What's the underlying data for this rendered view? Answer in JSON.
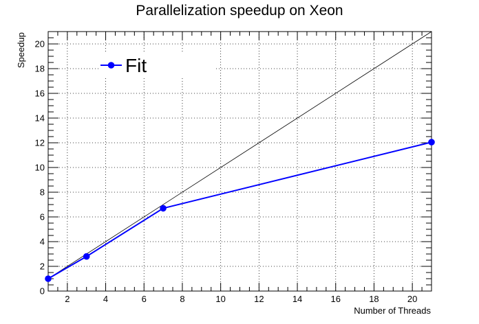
{
  "chart_data": {
    "type": "line",
    "title": "Parallelization speedup on Xeon",
    "xlabel": "Number of Threads",
    "ylabel": "Speedup",
    "xlim": [
      1,
      21
    ],
    "ylim": [
      0,
      21
    ],
    "grid": true,
    "legend_position": "top-left",
    "x_ticks": [
      2,
      4,
      6,
      8,
      10,
      12,
      14,
      16,
      18,
      20
    ],
    "y_ticks": [
      0,
      2,
      4,
      6,
      8,
      10,
      12,
      14,
      16,
      18,
      20
    ],
    "series": [
      {
        "name": "Fit",
        "color": "#0000ff",
        "marker": "circle",
        "points": [
          {
            "x": 1,
            "y": 1.0
          },
          {
            "x": 3,
            "y": 2.8
          },
          {
            "x": 7,
            "y": 6.7
          },
          {
            "x": 21,
            "y": 12.05
          }
        ]
      }
    ],
    "reference_line": {
      "color": "#000000",
      "points": [
        {
          "x": 1,
          "y": 1
        },
        {
          "x": 21,
          "y": 21
        }
      ]
    }
  }
}
